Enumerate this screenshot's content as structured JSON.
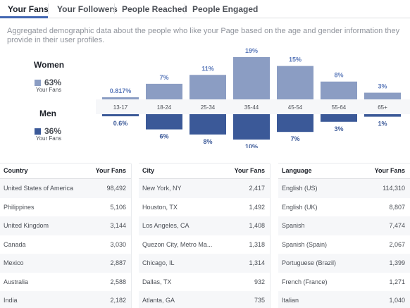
{
  "tabs": [
    {
      "label": "Your Fans",
      "active": true
    },
    {
      "label": "Your Followers",
      "active": false
    },
    {
      "label": "People Reached",
      "active": false
    },
    {
      "label": "People Engaged",
      "active": false
    }
  ],
  "description": "Aggregated demographic data about the people who like your Page based on the age and gender information they provide in their user profiles.",
  "legend": {
    "women": {
      "title": "Women",
      "pct": "63%",
      "sub": "Your Fans",
      "color": "#8b9dc3"
    },
    "men": {
      "title": "Men",
      "pct": "36%",
      "sub": "Your Fans",
      "color": "#3b5998"
    }
  },
  "chart_data": {
    "type": "bar",
    "categories": [
      "13-17",
      "18-24",
      "25-34",
      "35-44",
      "45-54",
      "55-64",
      "65+"
    ],
    "series": [
      {
        "name": "Women",
        "values": [
          0.817,
          7,
          11,
          19,
          15,
          8,
          3
        ],
        "labels": [
          "0.817%",
          "7%",
          "11%",
          "19%",
          "15%",
          "8%",
          "3%"
        ]
      },
      {
        "name": "Men",
        "values": [
          0.6,
          6,
          8,
          10,
          7,
          3,
          1
        ],
        "labels": [
          "0.6%",
          "6%",
          "8%",
          "10%",
          "7%",
          "3%",
          "1%"
        ]
      }
    ],
    "colors": {
      "women": "#8b9dc3",
      "men": "#3b5998"
    }
  },
  "tables": {
    "country": {
      "header": [
        "Country",
        "Your Fans"
      ],
      "rows": [
        [
          "United States of America",
          "98,492"
        ],
        [
          "Philippines",
          "5,106"
        ],
        [
          "United Kingdom",
          "3,144"
        ],
        [
          "Canada",
          "3,030"
        ],
        [
          "Mexico",
          "2,887"
        ],
        [
          "Australia",
          "2,588"
        ],
        [
          "India",
          "2,182"
        ]
      ]
    },
    "city": {
      "header": [
        "City",
        "Your Fans"
      ],
      "rows": [
        [
          "New York, NY",
          "2,417"
        ],
        [
          "Houston, TX",
          "1,492"
        ],
        [
          "Los Angeles, CA",
          "1,408"
        ],
        [
          "Quezon City, Metro Ma...",
          "1,318"
        ],
        [
          "Chicago, IL",
          "1,314"
        ],
        [
          "Dallas, TX",
          "932"
        ],
        [
          "Atlanta, GA",
          "735"
        ]
      ]
    },
    "language": {
      "header": [
        "Language",
        "Your Fans"
      ],
      "rows": [
        [
          "English (US)",
          "114,310"
        ],
        [
          "English (UK)",
          "8,807"
        ],
        [
          "Spanish",
          "7,474"
        ],
        [
          "Spanish (Spain)",
          "2,067"
        ],
        [
          "Portuguese (Brazil)",
          "1,399"
        ],
        [
          "French (France)",
          "1,271"
        ],
        [
          "Italian",
          "1,040"
        ]
      ]
    }
  }
}
